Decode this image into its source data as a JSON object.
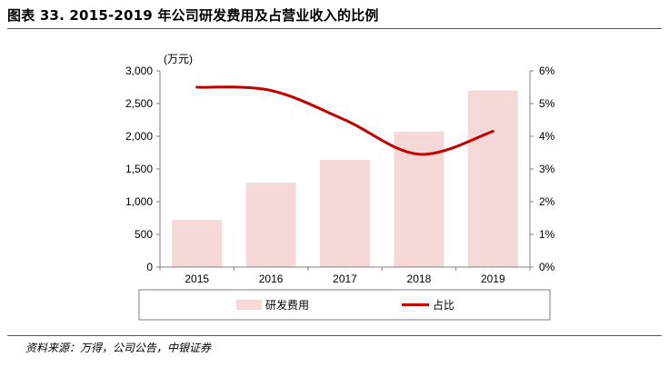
{
  "figure": {
    "title": "图表 33. 2015-2019 年公司研发费用及占营业收入的比例",
    "source": "资料来源：万得，公司公告，中银证券"
  },
  "colors": {
    "bar": "#f6d8d8",
    "line": "#c00000",
    "axis": "#808080",
    "legend_border": "#7f7f7f"
  },
  "chart_data": {
    "type": "bar+line",
    "categories": [
      "2015",
      "2016",
      "2017",
      "2018",
      "2019"
    ],
    "series": [
      {
        "name": "研发费用",
        "type": "bar",
        "axis": "left",
        "values": [
          720,
          1290,
          1640,
          2070,
          2700
        ]
      },
      {
        "name": "占比",
        "type": "line",
        "axis": "right",
        "smooth": true,
        "values": [
          5.5,
          5.4,
          4.5,
          3.45,
          4.15
        ]
      }
    ],
    "y_left": {
      "unit_label": "(万元)",
      "min": 0,
      "max": 3000,
      "ticks": [
        0,
        500,
        1000,
        1500,
        2000,
        2500,
        3000
      ],
      "tick_labels": [
        "0",
        "500",
        "1,000",
        "1,500",
        "2,000",
        "2,500",
        "3,000"
      ]
    },
    "y_right": {
      "min": 0,
      "max": 6,
      "ticks": [
        0,
        1,
        2,
        3,
        4,
        5,
        6
      ],
      "tick_labels": [
        "0%",
        "1%",
        "2%",
        "3%",
        "4%",
        "5%",
        "6%"
      ]
    },
    "grid": false,
    "legend": {
      "position": "bottom",
      "items": [
        "研发费用",
        "占比"
      ]
    }
  }
}
